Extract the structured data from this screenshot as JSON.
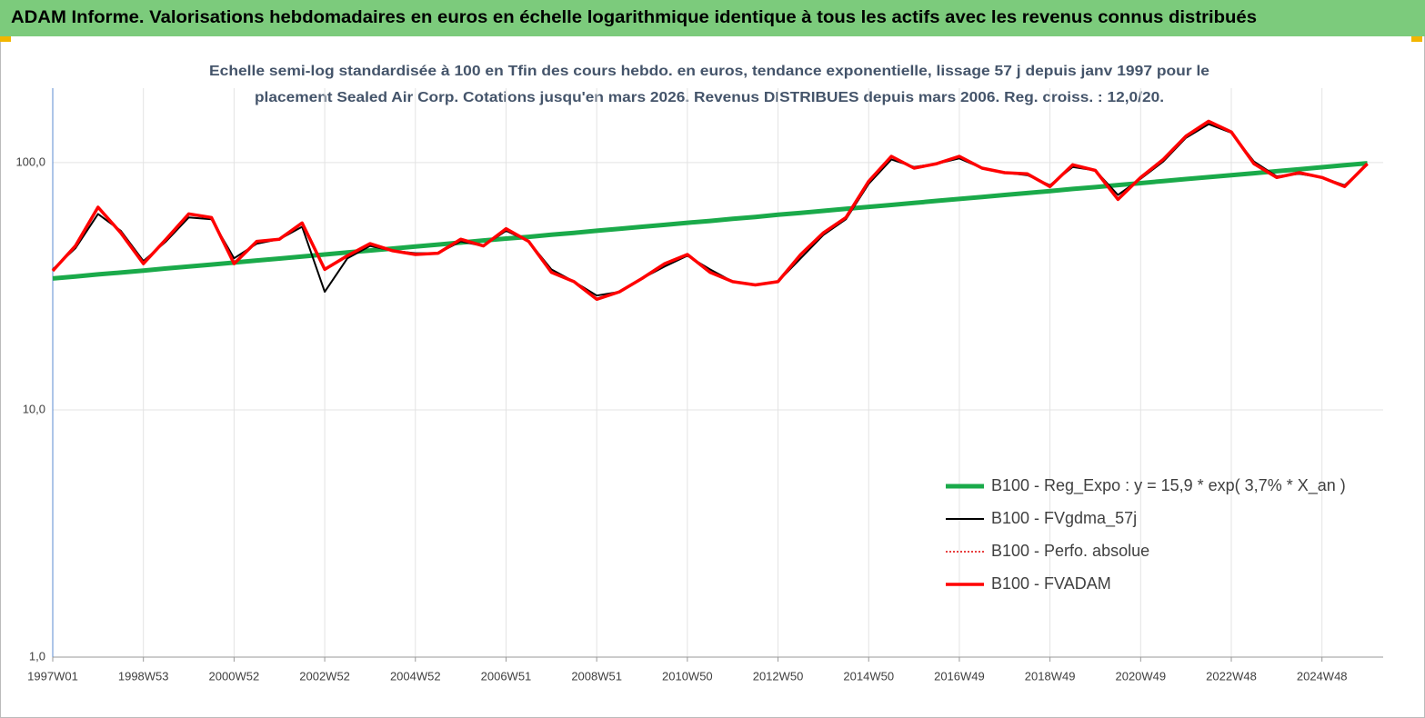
{
  "header": {
    "title": "ADAM Informe. Valorisations hebdomadaires en euros en échelle logarithmique identique à tous les actifs avec les revenus connus distribués"
  },
  "chart_data": {
    "type": "line",
    "subtitle": [
      "Echelle semi-log standardisée à 100 en Tfin des cours hebdo. en euros, tendance exponentielle, lissage 57 j depuis janv 1997 pour le",
      "placement Sealed Air Corp. Cotations jusqu'en mars 2026. Revenus DISTRIBUES depuis mars 2006. Reg. croiss. : 12,0/20."
    ],
    "log_scale": true,
    "grid": true,
    "legend_position": "lower-right",
    "ylim": [
      1,
      200
    ],
    "yticks": [
      {
        "value": 1,
        "label": "1,0"
      },
      {
        "value": 10,
        "label": "10,0"
      },
      {
        "value": 100,
        "label": "100,0"
      }
    ],
    "categories": [
      "1997W01",
      null,
      null,
      null,
      "1998W53",
      null,
      null,
      null,
      "2000W52",
      null,
      null,
      null,
      "2002W52",
      null,
      null,
      null,
      "2004W52",
      null,
      null,
      null,
      "2006W51",
      null,
      null,
      null,
      "2008W51",
      null,
      null,
      null,
      "2010W50",
      null,
      null,
      null,
      "2012W50",
      null,
      null,
      null,
      "2014W50",
      null,
      null,
      null,
      "2016W49",
      null,
      null,
      null,
      "2018W49",
      null,
      null,
      null,
      "2020W49",
      null,
      null,
      null,
      "2022W48",
      null,
      null,
      null,
      "2024W48",
      null,
      null
    ],
    "series": [
      {
        "name": "B100 - Reg_Expo : y = 15,9 *  exp( 3,7% *  X_an )",
        "color": "#1aaa4a",
        "width": 5,
        "dash": "solid",
        "values": [
          34.0,
          34.6,
          35.3,
          35.9,
          36.6,
          37.3,
          38.0,
          38.7,
          39.4,
          40.2,
          40.9,
          41.7,
          42.5,
          43.3,
          44.1,
          44.9,
          45.8,
          46.6,
          47.5,
          48.4,
          49.3,
          50.1,
          51.1,
          52.0,
          53.0,
          54.0,
          55.0,
          56.0,
          57.1,
          58.1,
          59.2,
          60.3,
          61.5,
          62.6,
          63.8,
          65.0,
          66.2,
          67.4,
          68.7,
          70.0,
          71.3,
          72.6,
          74.0,
          75.3,
          76.7,
          78.2,
          79.6,
          81.1,
          82.6,
          84.2,
          85.8,
          87.3,
          89.0,
          90.6,
          92.3,
          94.0,
          95.8,
          97.6,
          99.4
        ]
      },
      {
        "name": "B100 - FVgdma_57j",
        "color": "#000000",
        "width": 2,
        "dash": "solid",
        "values": [
          37,
          45,
          62,
          53,
          40,
          48,
          60,
          59,
          41,
          47,
          49,
          55,
          30,
          41,
          46,
          44,
          43,
          43,
          48,
          46,
          53,
          48,
          37,
          33,
          29,
          30,
          34,
          38,
          42,
          37,
          33,
          32,
          33,
          41,
          51,
          59,
          82,
          103,
          96,
          99,
          104,
          95,
          91,
          89,
          81,
          96,
          93,
          74,
          86,
          101,
          126,
          143,
          132,
          101,
          88,
          90,
          87,
          81,
          98
        ]
      },
      {
        "name": "B100 - Perfo. absolue",
        "color": "#e00000",
        "width": 1.5,
        "dash": "dotted",
        "values": [
          36.5,
          46,
          66,
          52,
          39,
          49,
          62,
          60,
          39,
          48,
          49,
          57,
          37,
          42,
          47,
          44,
          42.5,
          43,
          49,
          46,
          54,
          48,
          36,
          33,
          28,
          30,
          34,
          39,
          42.5,
          36,
          33,
          32,
          33,
          42.5,
          52,
          60,
          84,
          106,
          95,
          99,
          106,
          95,
          91,
          90,
          80,
          98,
          93,
          71,
          87,
          103,
          128,
          147,
          133,
          99,
          87,
          91,
          87,
          80,
          99
        ]
      },
      {
        "name": "B100 - FVADAM",
        "color": "#ff0000",
        "width": 3.5,
        "dash": "solid",
        "values": [
          36.5,
          46,
          66,
          52,
          39,
          49,
          62,
          60,
          39,
          48,
          49,
          57,
          37,
          42,
          47,
          44,
          42.5,
          43,
          49,
          46,
          54,
          48,
          36,
          33,
          28,
          30,
          34,
          39,
          42.5,
          36,
          33,
          32,
          33,
          42.5,
          52,
          60,
          84,
          106,
          95,
          99,
          106,
          95,
          91,
          90,
          80,
          98,
          93,
          71,
          87,
          103,
          128,
          147,
          133,
          99,
          87,
          91,
          87,
          80,
          99
        ]
      }
    ]
  }
}
